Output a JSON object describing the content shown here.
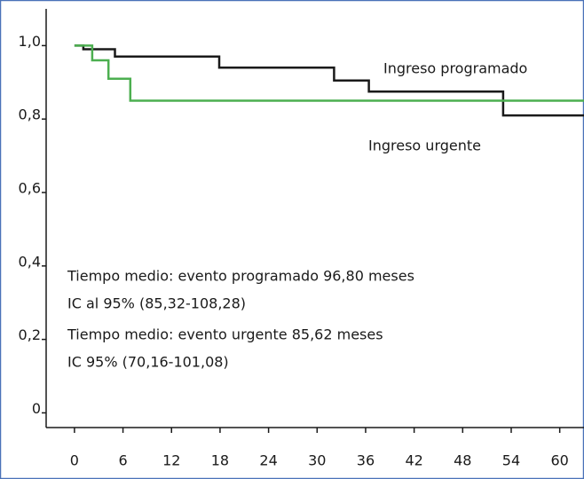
{
  "chart_data": {
    "type": "line",
    "step": true,
    "series": [
      {
        "name": "Ingreso programado",
        "color": "#1a1a1a",
        "x": [
          0,
          1.1,
          5,
          17.9,
          32.1,
          36.4,
          53
        ],
        "values": [
          1.0,
          0.99,
          0.97,
          0.94,
          0.905,
          0.875,
          0.81
        ]
      },
      {
        "name": "Ingreso urgente",
        "color": "#4caf50",
        "x": [
          0,
          2.2,
          4.2,
          6.9
        ],
        "values": [
          1.0,
          0.96,
          0.91,
          0.85
        ]
      }
    ],
    "xlim": [
      -3.5,
      63
    ],
    "ylim": [
      -0.04,
      1.1
    ],
    "xticks": [
      0,
      6,
      12,
      18,
      24,
      30,
      36,
      42,
      48,
      54,
      60
    ],
    "yticks": [
      0,
      {
        "value": 0.2,
        "label": "0,2"
      },
      {
        "value": 0.4,
        "label": "0,4"
      },
      {
        "value": 0.6,
        "label": "0,6"
      },
      {
        "value": 0.8,
        "label": "0,8"
      },
      {
        "value": 1.0,
        "label": "1,0"
      }
    ],
    "annotations": [
      "Tiempo medio: evento programado 96,80 meses",
      "IC al 95% (85,32-108,28)",
      "Tiempo medio: evento urgente 85,62 meses",
      "IC 95% (70,16-101,08)"
    ]
  }
}
